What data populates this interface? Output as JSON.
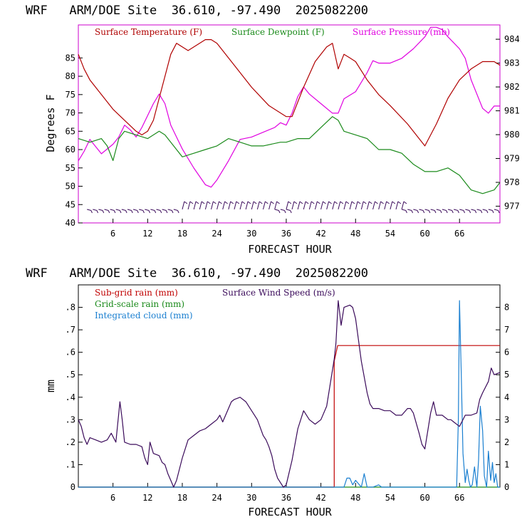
{
  "chart_data": [
    {
      "type": "line",
      "title": "WRF   ARM/DOE Site  36.610, -97.490  2025082200",
      "xlabel": "FORECAST HOUR",
      "ylabel": "Degrees F",
      "xlim": [
        0,
        73
      ],
      "x_ticks": [
        6,
        12,
        18,
        24,
        30,
        36,
        42,
        48,
        54,
        60,
        66
      ],
      "ylim": [
        40,
        94
      ],
      "y_ticks": [
        40,
        45,
        50,
        55,
        60,
        65,
        70,
        75,
        80,
        85
      ],
      "y2lim": [
        976.3,
        984.6
      ],
      "y2_ticks": [
        977,
        978,
        979,
        980,
        981,
        982,
        983,
        984
      ],
      "legend_placement": "top",
      "colors": {
        "temperature": "#b00000",
        "dewpoint": "#1a8a1a",
        "pressure": "#e000e0",
        "barbs": "#3a0a5a"
      },
      "series": [
        {
          "name": "Surface Temperature (F)",
          "axis": "left",
          "x": [
            0,
            1,
            2,
            4,
            6,
            8,
            10,
            11,
            12,
            13,
            14,
            16,
            17,
            18,
            19,
            20,
            22,
            23,
            24,
            27,
            30,
            33,
            36,
            37,
            39,
            41,
            43,
            44,
            45,
            46,
            47,
            48,
            50,
            52,
            54,
            57,
            60,
            62,
            64,
            66,
            68,
            70,
            72,
            73
          ],
          "y": [
            86,
            82,
            79,
            75,
            71,
            68,
            65,
            64,
            65,
            68,
            74,
            86,
            89,
            88,
            87,
            88,
            90,
            90,
            89,
            83,
            77,
            72,
            69,
            69,
            77,
            84,
            88,
            89,
            82,
            86,
            85,
            84,
            79,
            75,
            72,
            67,
            61,
            67,
            74,
            79,
            82,
            84,
            84,
            83
          ]
        },
        {
          "name": "Surface Dewpoint (F)",
          "axis": "left",
          "x": [
            0,
            2,
            4,
            5,
            6,
            7,
            8,
            10,
            12,
            14,
            15,
            16,
            18,
            20,
            22,
            24,
            26,
            28,
            30,
            32,
            35,
            36,
            38,
            40,
            42,
            44,
            45,
            46,
            48,
            50,
            52,
            54,
            56,
            58,
            60,
            62,
            64,
            66,
            68,
            70,
            72,
            73
          ],
          "y": [
            63,
            62,
            63,
            61,
            57,
            63,
            65,
            64,
            63,
            65,
            64,
            62,
            58,
            59,
            60,
            61,
            63,
            62,
            61,
            61,
            62,
            62,
            63,
            63,
            66,
            69,
            68,
            65,
            64,
            63,
            60,
            60,
            59,
            56,
            54,
            54,
            55,
            53,
            49,
            48,
            49,
            51
          ]
        },
        {
          "name": "Surface Pressure (mb)",
          "axis": "right",
          "x": [
            0,
            1,
            2,
            4,
            6,
            7,
            8,
            9,
            10,
            11,
            12,
            13,
            14,
            15,
            16,
            18,
            20,
            22,
            23,
            24,
            26,
            28,
            30,
            32,
            34,
            35,
            36,
            37,
            38,
            39,
            40,
            42,
            44,
            45,
            46,
            48,
            50,
            51,
            52,
            54,
            56,
            58,
            60,
            61,
            62,
            63,
            64,
            66,
            67,
            68,
            70,
            71,
            72,
            73
          ],
          "y": [
            978.9,
            979.3,
            979.8,
            979.2,
            979.6,
            979.9,
            980.4,
            980.2,
            979.9,
            980.3,
            980.8,
            981.3,
            981.7,
            981.3,
            980.4,
            979.4,
            978.6,
            977.9,
            977.8,
            978.1,
            978.9,
            979.8,
            979.9,
            980.1,
            980.3,
            980.5,
            980.4,
            980.9,
            981.6,
            982.0,
            981.7,
            981.3,
            980.9,
            980.9,
            981.5,
            981.8,
            982.6,
            983.1,
            983.0,
            983.0,
            983.2,
            983.6,
            984.1,
            984.5,
            984.5,
            984.4,
            984.1,
            983.6,
            983.2,
            982.3,
            981.1,
            980.9,
            981.2,
            981.2
          ]
        }
      ],
      "wind_barbs": {
        "segments": [
          {
            "x_start": 1.5,
            "x_end": 16.5,
            "row": "low"
          },
          {
            "x_start": 18,
            "x_end": 34,
            "row": "high"
          },
          {
            "x_start": 34,
            "x_end": 36,
            "row": "low"
          },
          {
            "x_start": 36,
            "x_end": 56,
            "row": "high"
          },
          {
            "x_start": 56,
            "x_end": 72.5,
            "row": "low"
          }
        ],
        "spacing_hours": 1
      }
    },
    {
      "type": "line",
      "title": "WRF   ARM/DOE Site  36.610, -97.490  2025082200",
      "xlabel": "FORECAST HOUR",
      "ylabel": "mm",
      "xlim": [
        0,
        73
      ],
      "x_ticks": [
        6,
        12,
        18,
        24,
        30,
        36,
        42,
        48,
        54,
        60,
        66
      ],
      "ylim": [
        0,
        0.9
      ],
      "y_ticks": [
        "0",
        ".1",
        ".2",
        ".3",
        ".4",
        ".5",
        ".6",
        ".7",
        ".8"
      ],
      "y_tick_values": [
        0,
        0.1,
        0.2,
        0.3,
        0.4,
        0.5,
        0.6,
        0.7,
        0.8
      ],
      "y2lim": [
        0,
        9
      ],
      "y2_ticks": [
        0,
        1,
        2,
        3,
        4,
        5,
        6,
        7,
        8
      ],
      "legend_placement": "top-left",
      "colors": {
        "subgrid": "#c00000",
        "gridscale": "#1a8a1a",
        "cloud": "#1a7fd0",
        "wind": "#3a0a5a"
      },
      "series": [
        {
          "name": "Sub-grid rain (mm)",
          "axis": "left",
          "x": [
            0,
            44.3,
            44.3,
            44.9,
            73
          ],
          "y": [
            0,
            0,
            0.56,
            0.63,
            0.63
          ]
        },
        {
          "name": "Grid-scale rain (mm)",
          "axis": "left",
          "x": [
            0,
            73
          ],
          "y": [
            0,
            0
          ]
        },
        {
          "name": "Integrated cloud (mm)",
          "axis": "right",
          "x": [
            0,
            46,
            46.5,
            47,
            47.5,
            48,
            49,
            49.5,
            50,
            51,
            52,
            52.5,
            53,
            54,
            60,
            65.5,
            65.8,
            66,
            66.3,
            66.6,
            67,
            67.3,
            67.6,
            67.9,
            68.2,
            68.6,
            69,
            69.3,
            69.6,
            70,
            70.3,
            70.7,
            71,
            71.4,
            71.7,
            72,
            72.3,
            72.6,
            73
          ],
          "y": [
            0,
            0,
            0.4,
            0.4,
            0.1,
            0.3,
            0,
            0.6,
            0,
            0,
            0.1,
            0,
            0,
            0,
            0,
            0,
            3,
            8.3,
            5,
            1.5,
            0.2,
            0.8,
            0.3,
            0,
            0.1,
            0.9,
            0,
            1.2,
            3.6,
            2.5,
            0.5,
            0,
            1.6,
            0.3,
            1.1,
            0.2,
            0.6,
            0,
            0
          ]
        },
        {
          "name": "Surface Wind Speed (m/s)",
          "axis": "right",
          "x": [
            0,
            0.5,
            1,
            1.5,
            2,
            3,
            4,
            5,
            5.7,
            6.5,
            7.2,
            7.6,
            8,
            9,
            10,
            11,
            11.5,
            12,
            12.4,
            13,
            14,
            14.5,
            15,
            15.5,
            16,
            16.5,
            17,
            18,
            19,
            20,
            21,
            22,
            23,
            24,
            24.5,
            25,
            26,
            26.5,
            27,
            28,
            29,
            30,
            31,
            32,
            32.5,
            33,
            33.5,
            34,
            34.5,
            35,
            35.5,
            36,
            37,
            38,
            39,
            40,
            41,
            42,
            43,
            44,
            44.3,
            44.6,
            45,
            45.5,
            46,
            47,
            47.5,
            48,
            49,
            50,
            50.5,
            51,
            52,
            53,
            54,
            55,
            56,
            57,
            57.5,
            58,
            59,
            59.5,
            60,
            61,
            61.5,
            62,
            63,
            64,
            64.5,
            65,
            66,
            67,
            68,
            69,
            69.5,
            70,
            71,
            71.5,
            72,
            73
          ],
          "y": [
            3,
            2.7,
            2.2,
            1.9,
            2.2,
            2.1,
            2.0,
            2.1,
            2.4,
            2.0,
            3.8,
            3.0,
            2.0,
            1.9,
            1.9,
            1.8,
            1.3,
            1.0,
            2.0,
            1.5,
            1.4,
            1.1,
            1.0,
            0.6,
            0.3,
            0.0,
            0.3,
            1.3,
            2.1,
            2.3,
            2.5,
            2.6,
            2.8,
            3.0,
            3.2,
            2.9,
            3.5,
            3.8,
            3.9,
            4.0,
            3.8,
            3.4,
            3.0,
            2.3,
            2.1,
            1.8,
            1.4,
            0.8,
            0.4,
            0.2,
            0.0,
            0.1,
            1.2,
            2.6,
            3.4,
            3.0,
            2.8,
            3.0,
            3.6,
            5.2,
            5.7,
            6.4,
            8.3,
            7.2,
            8.0,
            8.1,
            8.0,
            7.5,
            5.6,
            4.2,
            3.7,
            3.5,
            3.5,
            3.4,
            3.4,
            3.2,
            3.2,
            3.5,
            3.5,
            3.3,
            2.4,
            1.9,
            1.7,
            3.3,
            3.8,
            3.2,
            3.2,
            3.0,
            3.0,
            2.9,
            2.7,
            3.2,
            3.2,
            3.3,
            3.9,
            4.2,
            4.7,
            5.3,
            5.0,
            5.1
          ]
        }
      ]
    }
  ]
}
